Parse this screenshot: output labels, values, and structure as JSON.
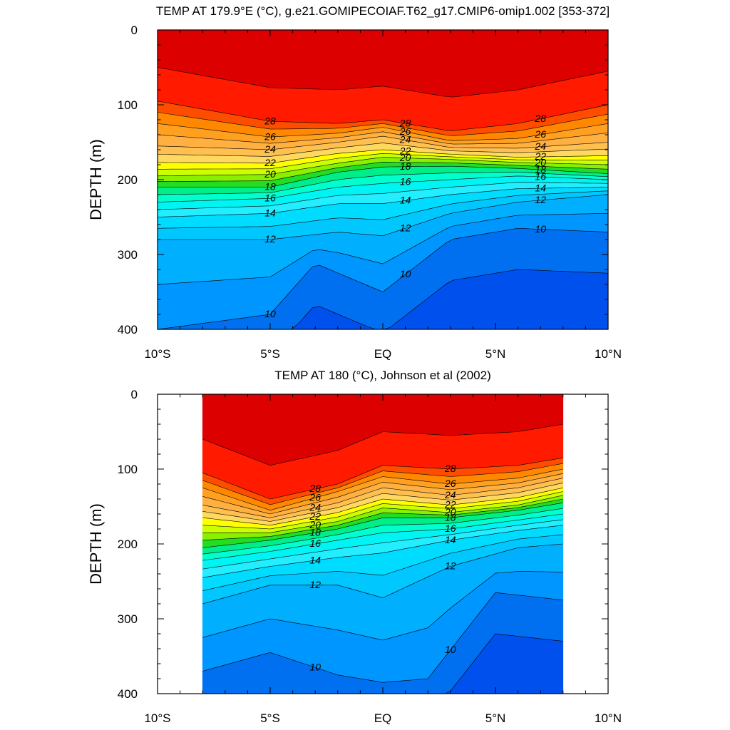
{
  "chart_data": [
    {
      "type": "heatmap",
      "title": "TEMP AT 179.9°E (°C), g.e21.GOMIPECOIAF.T62_g17.CMIP6-omip1.002 [353-372]",
      "xlabel": "",
      "ylabel": "DEPTH (m)",
      "x_ticks": [
        "10°S",
        "5°S",
        "EQ",
        "5°N",
        "10°N"
      ],
      "x_tick_values": [
        -10,
        -5,
        0,
        5,
        10
      ],
      "xlim": [
        -10,
        10
      ],
      "y_ticks": [
        "0",
        "100",
        "200",
        "300",
        "400"
      ],
      "y_tick_values": [
        0,
        100,
        200,
        300,
        400
      ],
      "ylim": [
        400,
        0
      ],
      "data_xlim": [
        -10,
        10
      ],
      "contour_levels": [
        28,
        26,
        24,
        22,
        20,
        18,
        16,
        14,
        12,
        10
      ],
      "isotherms": [
        {
          "temp": 28,
          "lat": [
            -10,
            -5,
            -2,
            0,
            3,
            6,
            10
          ],
          "depth": [
            95,
            122,
            125,
            120,
            135,
            125,
            100
          ]
        },
        {
          "temp": 26,
          "lat": [
            -10,
            -5,
            -2,
            0,
            3,
            6,
            10
          ],
          "depth": [
            125,
            143,
            138,
            130,
            148,
            145,
            125
          ]
        },
        {
          "temp": 24,
          "lat": [
            -10,
            -5,
            -2,
            0,
            3,
            6,
            10
          ],
          "depth": [
            155,
            160,
            150,
            142,
            157,
            158,
            150
          ]
        },
        {
          "temp": 22,
          "lat": [
            -10,
            -5,
            -2,
            0,
            3,
            6,
            10
          ],
          "depth": [
            177,
            178,
            165,
            160,
            166,
            170,
            168
          ]
        },
        {
          "temp": 20,
          "lat": [
            -10,
            -5,
            -2,
            0,
            3,
            6,
            10
          ],
          "depth": [
            195,
            193,
            178,
            170,
            173,
            177,
            180
          ]
        },
        {
          "temp": 18,
          "lat": [
            -10,
            -5,
            -2,
            0,
            3,
            6,
            10
          ],
          "depth": [
            210,
            210,
            190,
            183,
            182,
            185,
            192
          ]
        },
        {
          "temp": 16,
          "lat": [
            -10,
            -5,
            -2,
            0,
            3,
            6,
            10
          ],
          "depth": [
            230,
            225,
            210,
            205,
            200,
            195,
            200
          ]
        },
        {
          "temp": 14,
          "lat": [
            -10,
            -5,
            -2,
            0,
            3,
            6,
            10
          ],
          "depth": [
            250,
            245,
            232,
            232,
            220,
            212,
            210
          ]
        },
        {
          "temp": 12,
          "lat": [
            -10,
            -5,
            -2,
            0,
            3,
            6,
            10
          ],
          "depth": [
            280,
            280,
            270,
            275,
            245,
            230,
            220
          ]
        },
        {
          "temp": 10,
          "lat": [
            -10,
            -5,
            -3,
            0,
            3,
            6,
            10
          ],
          "depth": [
            400,
            380,
            312,
            350,
            280,
            265,
            270
          ]
        }
      ]
    },
    {
      "type": "heatmap",
      "title": "TEMP AT 180 (°C), Johnson et al (2002)",
      "xlabel": "",
      "ylabel": "DEPTH (m)",
      "x_ticks": [
        "10°S",
        "5°S",
        "EQ",
        "5°N",
        "10°N"
      ],
      "x_tick_values": [
        -10,
        -5,
        0,
        5,
        10
      ],
      "xlim": [
        -10,
        10
      ],
      "y_ticks": [
        "0",
        "100",
        "200",
        "300",
        "400"
      ],
      "y_tick_values": [
        0,
        100,
        200,
        300,
        400
      ],
      "ylim": [
        400,
        0
      ],
      "data_xlim": [
        -8,
        8
      ],
      "contour_levels": [
        28,
        26,
        24,
        22,
        20,
        18,
        16,
        14,
        12,
        10
      ],
      "isotherms": [
        {
          "temp": 28,
          "lat": [
            -8,
            -5,
            -2,
            0,
            3,
            6,
            8
          ],
          "depth": [
            105,
            140,
            120,
            95,
            100,
            95,
            85
          ]
        },
        {
          "temp": 26,
          "lat": [
            -8,
            -5,
            -2,
            0,
            3,
            6,
            8
          ],
          "depth": [
            125,
            155,
            130,
            110,
            120,
            112,
            100
          ]
        },
        {
          "temp": 24,
          "lat": [
            -8,
            -5,
            -2,
            0,
            3,
            6,
            8
          ],
          "depth": [
            148,
            165,
            145,
            125,
            135,
            125,
            112
          ]
        },
        {
          "temp": 22,
          "lat": [
            -8,
            -5,
            -2,
            0,
            3,
            6,
            8
          ],
          "depth": [
            165,
            175,
            158,
            140,
            148,
            138,
            125
          ]
        },
        {
          "temp": 20,
          "lat": [
            -8,
            -5,
            -2,
            0,
            3,
            6,
            8
          ],
          "depth": [
            185,
            185,
            170,
            152,
            158,
            148,
            135
          ]
        },
        {
          "temp": 18,
          "lat": [
            -8,
            -5,
            -2,
            0,
            3,
            6,
            8
          ],
          "depth": [
            205,
            195,
            180,
            165,
            165,
            155,
            145
          ]
        },
        {
          "temp": 16,
          "lat": [
            -8,
            -5,
            -2,
            0,
            3,
            6,
            8
          ],
          "depth": [
            222,
            210,
            195,
            185,
            180,
            168,
            160
          ]
        },
        {
          "temp": 14,
          "lat": [
            -8,
            -5,
            -2,
            0,
            3,
            6,
            8
          ],
          "depth": [
            245,
            230,
            218,
            212,
            195,
            182,
            175
          ]
        },
        {
          "temp": 12,
          "lat": [
            -8,
            -5,
            -2,
            0,
            3,
            6,
            8
          ],
          "depth": [
            280,
            255,
            255,
            272,
            230,
            205,
            200
          ]
        },
        {
          "temp": 10,
          "lat": [
            -8,
            -5,
            -2,
            0,
            2,
            5,
            8
          ],
          "depth": [
            370,
            345,
            375,
            385,
            380,
            265,
            275
          ]
        }
      ]
    }
  ]
}
